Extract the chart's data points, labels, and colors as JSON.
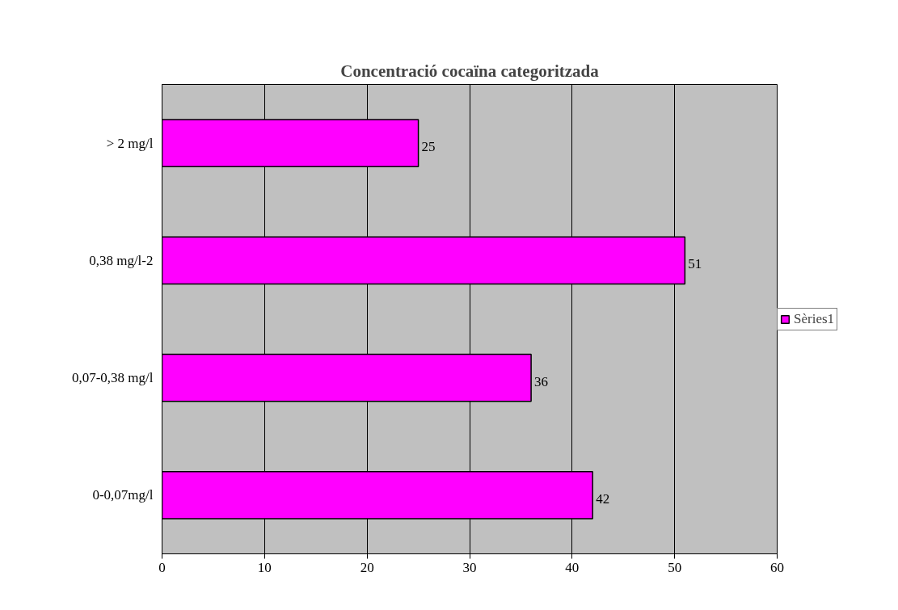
{
  "chart_data": {
    "type": "bar",
    "orientation": "horizontal",
    "title": "Concentració cocaïna categoritzada",
    "categories": [
      "> 2 mg/l",
      "0,38 mg/l-2",
      "0,07-0,38 mg/l",
      "0-0,07mg/l"
    ],
    "series": [
      {
        "name": "Sèries1",
        "color": "#ff00ff",
        "values": [
          25,
          51,
          36,
          42
        ]
      }
    ],
    "xlim": [
      0,
      60
    ],
    "xticks": [
      0,
      10,
      20,
      30,
      40,
      50,
      60
    ],
    "grid": "x",
    "legend": "right",
    "data_labels": true
  }
}
